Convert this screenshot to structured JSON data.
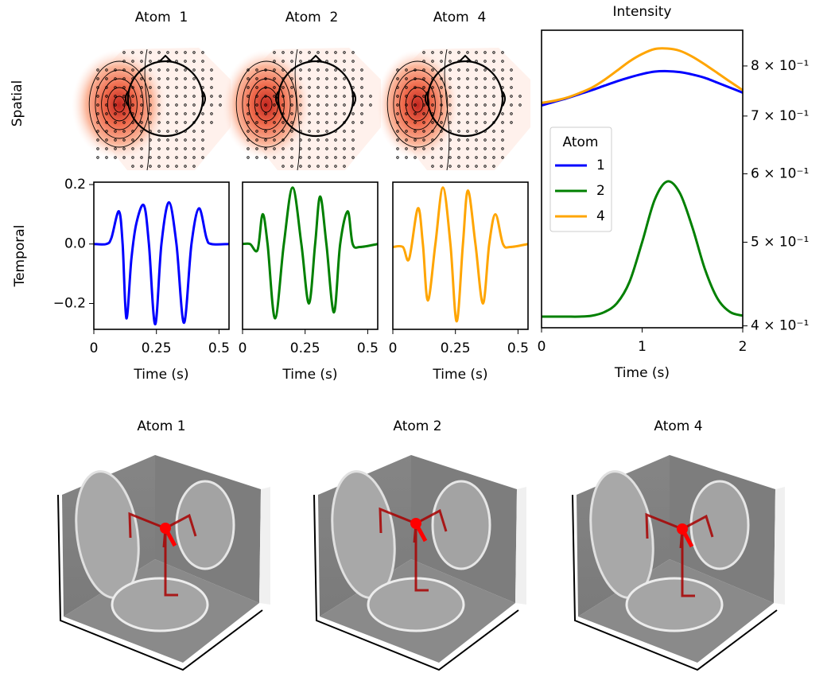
{
  "topomaps": [
    {
      "title": "Atom  1"
    },
    {
      "title": "Atom  2"
    },
    {
      "title": "Atom  4"
    }
  ],
  "row_label": "Spatial",
  "brains": [
    {
      "title": "Atom 1"
    },
    {
      "title": "Atom 2"
    },
    {
      "title": "Atom 4"
    }
  ],
  "chart_data": [
    {
      "type": "line",
      "ylabel": "Temporal",
      "xlabel": "Time (s)",
      "xlim": [
        0,
        0.54
      ],
      "ylim": [
        -0.287,
        0.208
      ],
      "xticks": [
        0,
        0.25,
        0.5
      ],
      "yticks": [
        {
          "value": -0.2,
          "label": "−0.2"
        },
        {
          "value": 0,
          "label": "0.0"
        },
        {
          "value": 0.2,
          "label": "0.2"
        }
      ],
      "x": [
        0,
        0.05,
        0.07,
        0.1,
        0.115,
        0.13,
        0.15,
        0.17,
        0.2,
        0.22,
        0.245,
        0.27,
        0.3,
        0.33,
        0.36,
        0.39,
        0.42,
        0.45,
        0.47,
        0.54
      ],
      "series": [
        {
          "color": "#0000ff",
          "values": [
            0,
            0,
            0.02,
            0.11,
            0,
            -0.25,
            -0.05,
            0.07,
            0.13,
            0,
            -0.27,
            0,
            0.14,
            0,
            -0.265,
            0,
            0.12,
            0.02,
            0,
            0
          ]
        }
      ]
    },
    {
      "type": "line",
      "xlabel": "Time (s)",
      "xlim": [
        0,
        0.54
      ],
      "ylim": [
        -0.287,
        0.208
      ],
      "xticks": [
        0,
        0.25,
        0.5
      ],
      "x": [
        0,
        0.03,
        0.06,
        0.08,
        0.1,
        0.13,
        0.165,
        0.2,
        0.235,
        0.265,
        0.29,
        0.31,
        0.335,
        0.365,
        0.39,
        0.42,
        0.44,
        0.47,
        0.54
      ],
      "series": [
        {
          "color": "#008000",
          "values": [
            0,
            0,
            -0.02,
            0.1,
            0,
            -0.25,
            0,
            0.19,
            0,
            -0.2,
            0,
            0.16,
            0,
            -0.23,
            0,
            0.11,
            0,
            -0.01,
            0
          ]
        }
      ]
    },
    {
      "type": "line",
      "xlabel": "Time (s)",
      "xlim": [
        0,
        0.54
      ],
      "ylim": [
        -0.287,
        0.208
      ],
      "xticks": [
        0,
        0.25,
        0.5
      ],
      "x": [
        0,
        0.04,
        0.065,
        0.1,
        0.12,
        0.14,
        0.17,
        0.2,
        0.23,
        0.255,
        0.28,
        0.3,
        0.33,
        0.36,
        0.385,
        0.41,
        0.44,
        0.47,
        0.54
      ],
      "series": [
        {
          "color": "#ffa500",
          "values": [
            -0.01,
            -0.01,
            -0.05,
            0.12,
            0,
            -0.19,
            0,
            0.19,
            0,
            -0.26,
            0,
            0.18,
            0,
            -0.2,
            0,
            0.1,
            0,
            -0.01,
            0
          ]
        }
      ]
    },
    {
      "type": "line",
      "title": "Intensity",
      "xlabel": "Time (s)",
      "xlim": [
        0,
        2
      ],
      "ylim": [
        0.398,
        0.88
      ],
      "log_scale_y": true,
      "y_axis_side": "right",
      "xticks": [
        0,
        1,
        2
      ],
      "yticks": [
        {
          "value": 0.4,
          "label": "4 × 10⁻¹"
        },
        {
          "value": 0.5,
          "label": "5 × 10⁻¹"
        },
        {
          "value": 0.6,
          "label": "6 × 10⁻¹"
        },
        {
          "value": 0.7,
          "label": "7 × 10⁻¹"
        },
        {
          "value": 0.8,
          "label": "8 × 10⁻¹"
        }
      ],
      "legend": {
        "title": "Atom",
        "loc": "center left"
      },
      "x": [
        0,
        0.125,
        0.25,
        0.375,
        0.5,
        0.625,
        0.75,
        0.875,
        1,
        1.125,
        1.25,
        1.375,
        1.5,
        1.625,
        1.75,
        1.875,
        2
      ],
      "series": [
        {
          "name": "1",
          "color": "#0000ff",
          "values": [
            0.72,
            0.727,
            0.734,
            0.742,
            0.75,
            0.759,
            0.768,
            0.776,
            0.783,
            0.788,
            0.789,
            0.787,
            0.782,
            0.775,
            0.765,
            0.755,
            0.745
          ]
        },
        {
          "name": "2",
          "color": "#008000",
          "values": [
            0.41,
            0.41,
            0.41,
            0.41,
            0.411,
            0.415,
            0.425,
            0.45,
            0.5,
            0.56,
            0.588,
            0.57,
            0.52,
            0.465,
            0.43,
            0.415,
            0.411
          ]
        },
        {
          "name": "4",
          "color": "#ffa500",
          "values": [
            0.725,
            0.729,
            0.735,
            0.744,
            0.755,
            0.771,
            0.79,
            0.81,
            0.826,
            0.837,
            0.838,
            0.833,
            0.82,
            0.803,
            0.785,
            0.767,
            0.75
          ]
        }
      ]
    }
  ]
}
